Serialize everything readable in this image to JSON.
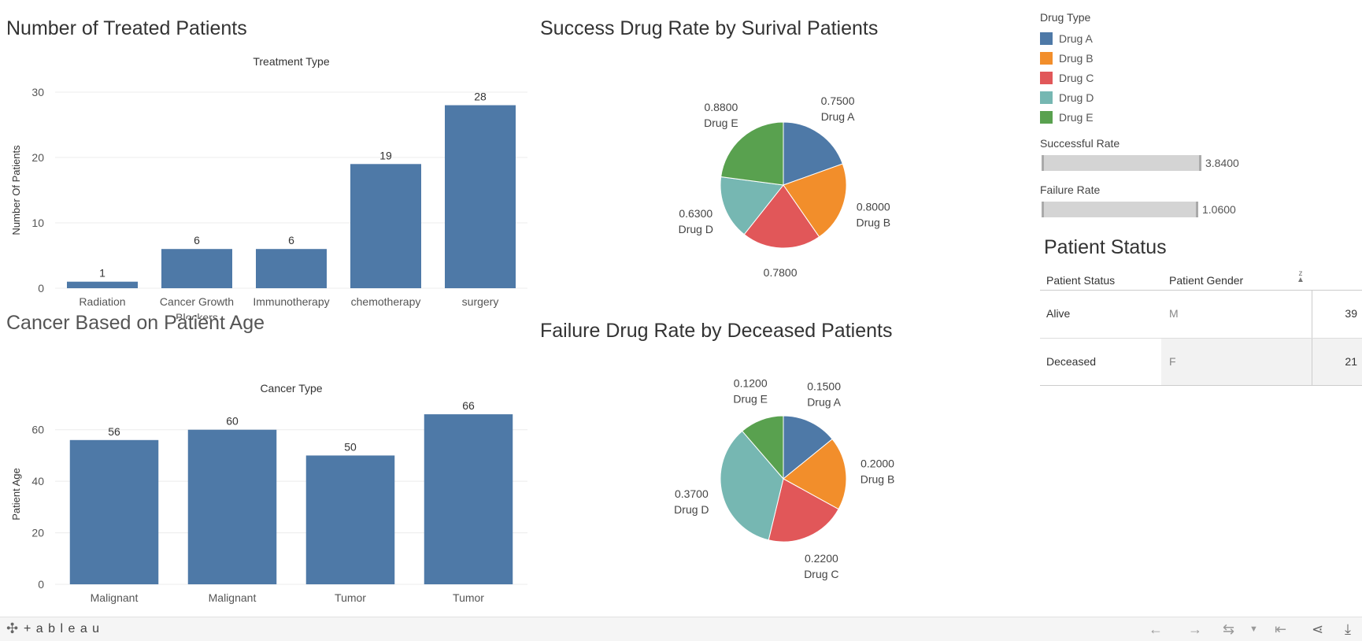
{
  "titles": {
    "treated": "Number of Treated Patients",
    "cancer_age": "Cancer Based on Patient Age",
    "success": "Success Drug Rate by Surival Patients",
    "failure": "Failure Drug Rate by Deceased Patients",
    "patient_status": "Patient Status"
  },
  "legend": {
    "title": "Drug Type",
    "items": [
      {
        "label": "Drug A",
        "color": "#4e79a7"
      },
      {
        "label": "Drug B",
        "color": "#f28e2b"
      },
      {
        "label": "Drug C",
        "color": "#e15759"
      },
      {
        "label": "Drug D",
        "color": "#76b7b2"
      },
      {
        "label": "Drug E",
        "color": "#59a14f"
      }
    ]
  },
  "rate_filters": {
    "successful": {
      "label": "Successful Rate",
      "value": "3.8400"
    },
    "failure": {
      "label": "Failure Rate",
      "value": "1.0600"
    }
  },
  "status_table": {
    "headers": [
      "Patient Status",
      "Patient Gender"
    ],
    "rows": [
      {
        "status": "Alive",
        "gender": "M",
        "count": "39"
      },
      {
        "status": "Deceased",
        "gender": "F",
        "count": "21"
      }
    ]
  },
  "footer": {
    "brand": "+ a b l e a u"
  },
  "chart_data": [
    {
      "id": "treated",
      "type": "bar",
      "title": "Number of Treated Patients",
      "header": "Treatment Type",
      "categories": [
        "Radiation",
        "Cancer Growth Blockers",
        "Immunotherapy",
        "chemotherapy",
        "surgery"
      ],
      "values": [
        1,
        6,
        6,
        19,
        28
      ],
      "ylabel": "Number Of Patients",
      "ylim": [
        0,
        30
      ],
      "yticks": [
        0,
        10,
        20,
        30
      ],
      "color": "#4e79a7"
    },
    {
      "id": "cancer_age",
      "type": "bar",
      "title": "Cancer Based on Patient Age",
      "header": "Cancer Type",
      "categories": [
        "Malignant",
        "Malignant",
        "Tumor",
        "Tumor"
      ],
      "values": [
        56,
        60,
        50,
        66
      ],
      "ylabel": "Patient Age",
      "ylim": [
        0,
        70
      ],
      "yticks": [
        0,
        20,
        40,
        60
      ],
      "color": "#4e79a7"
    },
    {
      "id": "success",
      "type": "pie",
      "title": "Success Drug Rate by Surival Patients",
      "labels": [
        "Drug A",
        "Drug B",
        "Drug C",
        "Drug D",
        "Drug E"
      ],
      "values": [
        0.75,
        0.8,
        0.78,
        0.63,
        0.88
      ],
      "value_labels": [
        "0.7500",
        "0.8000",
        "0.7800",
        "0.6300",
        "0.8800"
      ],
      "colors": [
        "#4e79a7",
        "#f28e2b",
        "#e15759",
        "#76b7b2",
        "#59a14f"
      ]
    },
    {
      "id": "failure",
      "type": "pie",
      "title": "Failure Drug Rate by Deceased Patients",
      "labels": [
        "Drug A",
        "Drug B",
        "Drug C",
        "Drug D",
        "Drug E"
      ],
      "values": [
        0.15,
        0.2,
        0.22,
        0.37,
        0.12
      ],
      "value_labels": [
        "0.1500",
        "0.2000",
        "0.2200",
        "0.3700",
        "0.1200"
      ],
      "colors": [
        "#4e79a7",
        "#f28e2b",
        "#e15759",
        "#76b7b2",
        "#59a14f"
      ]
    }
  ]
}
